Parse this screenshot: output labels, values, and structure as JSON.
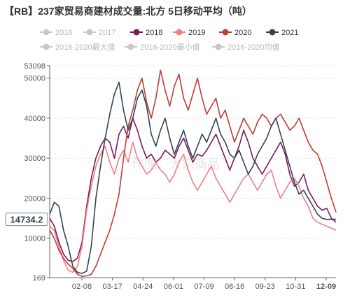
{
  "chart_data": {
    "type": "line",
    "title": "【RB】237家贸易商建材成交量:北方 5日移动平均（吨）",
    "watermark": "作图：大宗商品",
    "ylim": [
      169,
      53098
    ],
    "y_ticks": [
      169,
      10000,
      20000,
      30000,
      40000,
      50000,
      53098
    ],
    "x_ticks": [
      "02-08",
      "03-17",
      "04-24",
      "06-01",
      "07-09",
      "08-16",
      "09-23",
      "10-31",
      "12-09"
    ],
    "current_value_label": "14734.2",
    "grid": true,
    "legend_position": "top",
    "series": [
      {
        "name": "2016",
        "active": false,
        "color": "#c8c8c8",
        "values": []
      },
      {
        "name": "2017",
        "active": false,
        "color": "#c8c8c8",
        "values": []
      },
      {
        "name": "2018",
        "active": true,
        "color": "#7b1a5a",
        "values": [
          15000,
          13000,
          9000,
          6000,
          4500,
          4200,
          5000,
          9000,
          18000,
          25000,
          30000,
          33000,
          35000,
          34000,
          30000,
          36000,
          38000,
          35000,
          40000,
          37000,
          33000,
          30000,
          31000,
          29000,
          30000,
          32000,
          31000,
          30000,
          33000,
          35000,
          32000,
          29000,
          31000,
          30500,
          32000,
          34000,
          36000,
          33000,
          30000,
          27000,
          30000,
          33000,
          37000,
          34000,
          30000,
          28000,
          26000,
          28000,
          30000,
          32000,
          34000,
          31000,
          26000,
          23000,
          24000,
          26000,
          22000,
          20000,
          18000,
          17000,
          17500,
          15000,
          14000
        ]
      },
      {
        "name": "2019",
        "active": true,
        "color": "#f07f84",
        "values": [
          13000,
          12000,
          8000,
          4500,
          2000,
          1500,
          3000,
          8000,
          17000,
          23000,
          28000,
          31000,
          33000,
          29000,
          26000,
          30000,
          32000,
          29000,
          34000,
          30000,
          28000,
          26000,
          27000,
          29000,
          27000,
          26000,
          24000,
          26000,
          29000,
          31000,
          27000,
          24000,
          22000,
          24000,
          26000,
          28000,
          25000,
          23000,
          21000,
          19000,
          21000,
          23000,
          25000,
          26000,
          24000,
          22000,
          24000,
          26000,
          27000,
          23000,
          20000,
          22000,
          24000,
          25000,
          23000,
          20000,
          18000,
          15000,
          14000,
          13500,
          13000,
          12500,
          12000
        ]
      },
      {
        "name": "2020",
        "active": true,
        "color": "#c23b34",
        "values": [
          12000,
          10000,
          7000,
          5000,
          3500,
          2500,
          1000,
          500,
          600,
          1000,
          3000,
          6000,
          9000,
          12000,
          16000,
          21000,
          30000,
          38000,
          42000,
          47000,
          50000,
          44000,
          40000,
          45000,
          52000,
          47000,
          43000,
          48000,
          51000,
          45000,
          42000,
          46000,
          50000,
          45000,
          41000,
          43000,
          45000,
          40000,
          42000,
          38000,
          34000,
          37000,
          40000,
          38000,
          36000,
          39000,
          41000,
          40000,
          38000,
          40000,
          41000,
          39000,
          37000,
          38000,
          40000,
          37000,
          34000,
          32000,
          31000,
          28000,
          24000,
          20000,
          16500
        ]
      },
      {
        "name": "2021",
        "active": true,
        "color": "#2f4553",
        "values": [
          16000,
          19000,
          18000,
          12000,
          8000,
          3000,
          1500,
          1200,
          1800,
          8000,
          20000,
          28000,
          35000,
          41000,
          46000,
          49000,
          42000,
          37000,
          40000,
          45000,
          47000,
          43000,
          36000,
          33000,
          37000,
          40000,
          35000,
          31000,
          34000,
          37000,
          33000,
          30000,
          33000,
          36000,
          34000,
          37000,
          40000,
          36000,
          34000,
          31000,
          30000,
          32000,
          29000,
          26000,
          28000,
          31000,
          33000,
          35000,
          38000,
          40000,
          36000,
          32000,
          28000,
          24000,
          21000,
          22000,
          20000,
          18000,
          16000,
          15000,
          14700,
          14734,
          14734
        ]
      },
      {
        "name": "2016-2020最大值",
        "active": false,
        "color": "#c8c8c8",
        "values": []
      },
      {
        "name": "2016-2020最小值",
        "active": false,
        "color": "#c8c8c8",
        "values": []
      },
      {
        "name": "2016-2020均值",
        "active": false,
        "color": "#c8c8c8",
        "values": []
      }
    ]
  }
}
